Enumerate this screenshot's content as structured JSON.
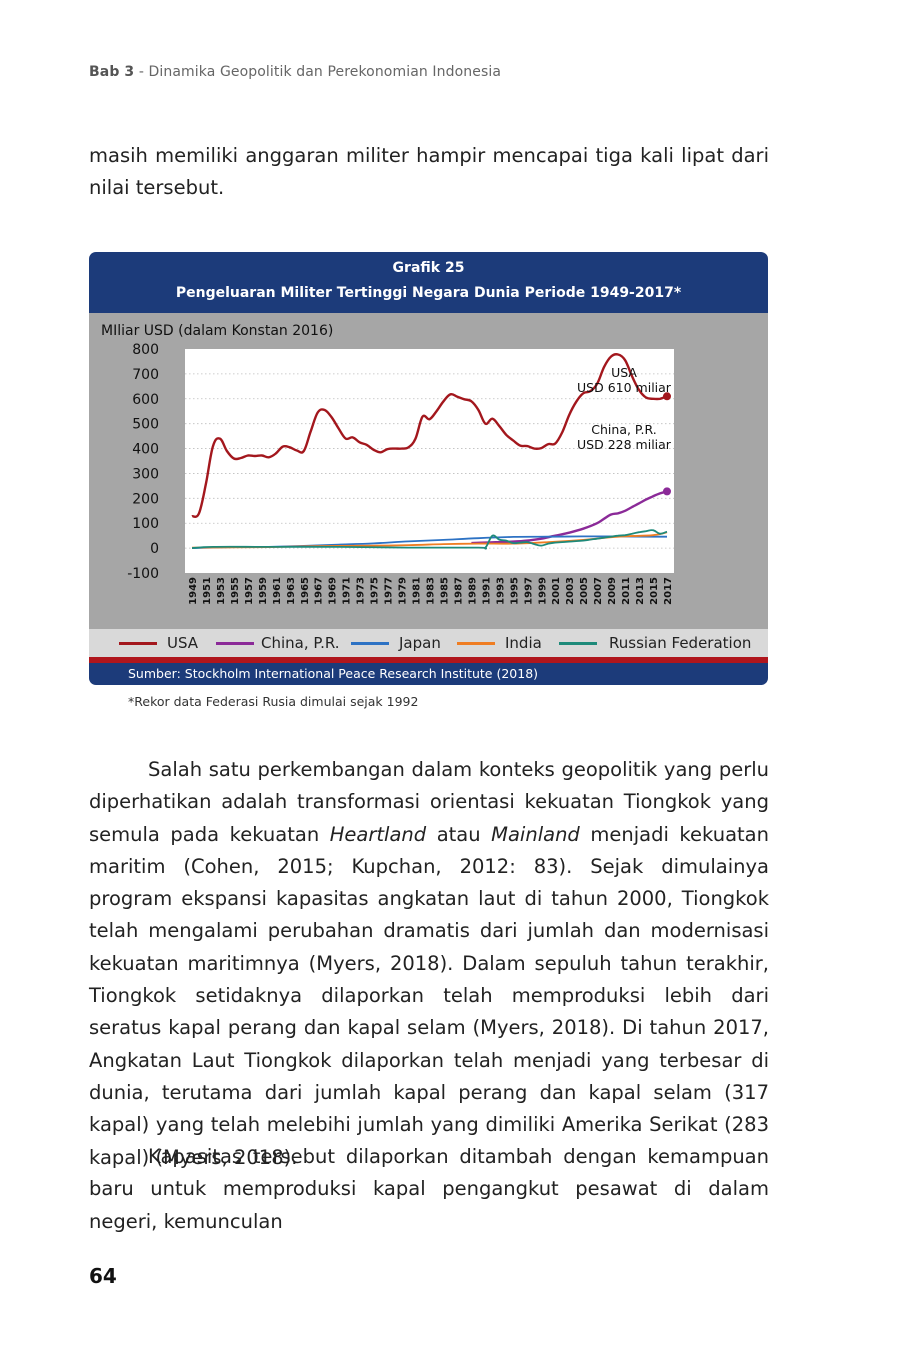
{
  "running_header": {
    "chapter": "Bab 3",
    "title": " - Dinamika Geopolitik dan Perekonomian Indonesia"
  },
  "paragraph_top": "masih memiliki anggaran militer hampir mencapai tiga kali lipat dari nilai tersebut.",
  "figure": {
    "label": "Grafik 25",
    "title": "Pengeluaran Militer Tertinggi Negara Dunia Periode 1949-2017*",
    "source": "Sumber: Stockholm International Peace Research Institute (2018)",
    "footnote": "*Rekor data Federasi Rusia dimulai sejak 1992"
  },
  "chart_data": {
    "type": "line",
    "ylabel": "MIliar USD (dalam Konstan 2016)",
    "ylim": [
      -100,
      800
    ],
    "yticks": [
      "800",
      "700",
      "600",
      "500",
      "400",
      "300",
      "200",
      "100",
      "0",
      "-100"
    ],
    "xlim": [
      1949,
      2017
    ],
    "xticks": [
      "1949",
      "1951",
      "1953",
      "1955",
      "1957",
      "1959",
      "1961",
      "1963",
      "1965",
      "1967",
      "1969",
      "1971",
      "1973",
      "1975",
      "1977",
      "1979",
      "1981",
      "1983",
      "1985",
      "1987",
      "1989",
      "1991",
      "1993",
      "1995",
      "1997",
      "1999",
      "2001",
      "2003",
      "2005",
      "2007",
      "2009",
      "2011",
      "2013",
      "2015",
      "2017"
    ],
    "grid": true,
    "legend_position": "bottom",
    "annotations": [
      {
        "series": "USA",
        "line1": "USA",
        "line2": "USD 610 miliar"
      },
      {
        "series": "China, P.R.",
        "line1": "China, P.R.",
        "line2": "USD 228 miliar"
      }
    ],
    "series": [
      {
        "name": "USA",
        "color": "#a3171d",
        "points": [
          [
            1949,
            128
          ],
          [
            1950,
            140
          ],
          [
            1951,
            260
          ],
          [
            1952,
            410
          ],
          [
            1953,
            440
          ],
          [
            1954,
            390
          ],
          [
            1955,
            360
          ],
          [
            1956,
            362
          ],
          [
            1957,
            372
          ],
          [
            1958,
            370
          ],
          [
            1959,
            372
          ],
          [
            1960,
            365
          ],
          [
            1961,
            380
          ],
          [
            1962,
            408
          ],
          [
            1963,
            405
          ],
          [
            1964,
            392
          ],
          [
            1965,
            390
          ],
          [
            1966,
            470
          ],
          [
            1967,
            545
          ],
          [
            1968,
            555
          ],
          [
            1969,
            525
          ],
          [
            1970,
            480
          ],
          [
            1971,
            440
          ],
          [
            1972,
            445
          ],
          [
            1973,
            425
          ],
          [
            1974,
            415
          ],
          [
            1975,
            395
          ],
          [
            1976,
            385
          ],
          [
            1977,
            398
          ],
          [
            1978,
            400
          ],
          [
            1979,
            400
          ],
          [
            1980,
            405
          ],
          [
            1981,
            440
          ],
          [
            1982,
            528
          ],
          [
            1983,
            518
          ],
          [
            1984,
            550
          ],
          [
            1985,
            590
          ],
          [
            1986,
            618
          ],
          [
            1987,
            608
          ],
          [
            1988,
            598
          ],
          [
            1989,
            590
          ],
          [
            1990,
            555
          ],
          [
            1991,
            500
          ],
          [
            1992,
            520
          ],
          [
            1993,
            490
          ],
          [
            1994,
            455
          ],
          [
            1995,
            432
          ],
          [
            1996,
            412
          ],
          [
            1997,
            410
          ],
          [
            1998,
            400
          ],
          [
            1999,
            402
          ],
          [
            2000,
            418
          ],
          [
            2001,
            420
          ],
          [
            2002,
            465
          ],
          [
            2003,
            535
          ],
          [
            2004,
            588
          ],
          [
            2005,
            622
          ],
          [
            2006,
            630
          ],
          [
            2007,
            660
          ],
          [
            2008,
            728
          ],
          [
            2009,
            770
          ],
          [
            2010,
            778
          ],
          [
            2011,
            755
          ],
          [
            2012,
            690
          ],
          [
            2013,
            635
          ],
          [
            2014,
            605
          ],
          [
            2015,
            600
          ],
          [
            2016,
            600
          ],
          [
            2017,
            610
          ]
        ]
      },
      {
        "name": "China, P.R.",
        "color": "#8b2a98",
        "points": [
          [
            1989,
            20
          ],
          [
            1991,
            22
          ],
          [
            1993,
            24
          ],
          [
            1995,
            26
          ],
          [
            1997,
            30
          ],
          [
            1999,
            38
          ],
          [
            2001,
            50
          ],
          [
            2003,
            62
          ],
          [
            2005,
            78
          ],
          [
            2007,
            100
          ],
          [
            2008,
            118
          ],
          [
            2009,
            135
          ],
          [
            2010,
            140
          ],
          [
            2011,
            150
          ],
          [
            2012,
            165
          ],
          [
            2013,
            180
          ],
          [
            2014,
            195
          ],
          [
            2015,
            208
          ],
          [
            2016,
            220
          ],
          [
            2017,
            228
          ]
        ]
      },
      {
        "name": "Japan",
        "color": "#2d72c4",
        "points": [
          [
            1949,
            0
          ],
          [
            1955,
            4
          ],
          [
            1960,
            5
          ],
          [
            1965,
            9
          ],
          [
            1970,
            14
          ],
          [
            1975,
            19
          ],
          [
            1980,
            27
          ],
          [
            1985,
            33
          ],
          [
            1990,
            40
          ],
          [
            1995,
            45
          ],
          [
            2000,
            46
          ],
          [
            2005,
            47
          ],
          [
            2010,
            47
          ],
          [
            2015,
            46
          ],
          [
            2017,
            46
          ]
        ]
      },
      {
        "name": "India",
        "color": "#ef7d22",
        "points": [
          [
            1949,
            2
          ],
          [
            1955,
            3
          ],
          [
            1960,
            4
          ],
          [
            1965,
            7
          ],
          [
            1970,
            9
          ],
          [
            1975,
            10
          ],
          [
            1980,
            12
          ],
          [
            1985,
            16
          ],
          [
            1990,
            18
          ],
          [
            1995,
            18
          ],
          [
            2000,
            24
          ],
          [
            2005,
            33
          ],
          [
            2010,
            46
          ],
          [
            2015,
            52
          ],
          [
            2017,
            64
          ]
        ]
      },
      {
        "name": "Russian Federation",
        "color": "#1e8a7a",
        "points": [
          [
            1949,
            0
          ],
          [
            1952,
            5
          ],
          [
            1960,
            5
          ],
          [
            1970,
            5
          ],
          [
            1980,
            2
          ],
          [
            1990,
            2
          ],
          [
            1991,
            2
          ],
          [
            1992,
            50
          ],
          [
            1993,
            34
          ],
          [
            1994,
            30
          ],
          [
            1995,
            20
          ],
          [
            1996,
            22
          ],
          [
            1997,
            24
          ],
          [
            1998,
            16
          ],
          [
            1999,
            10
          ],
          [
            2000,
            18
          ],
          [
            2001,
            22
          ],
          [
            2002,
            24
          ],
          [
            2003,
            26
          ],
          [
            2004,
            28
          ],
          [
            2005,
            30
          ],
          [
            2006,
            34
          ],
          [
            2007,
            38
          ],
          [
            2008,
            42
          ],
          [
            2009,
            46
          ],
          [
            2010,
            50
          ],
          [
            2011,
            52
          ],
          [
            2012,
            58
          ],
          [
            2013,
            64
          ],
          [
            2014,
            68
          ],
          [
            2015,
            72
          ],
          [
            2016,
            58
          ],
          [
            2017,
            66
          ]
        ]
      }
    ]
  },
  "legend": [
    {
      "label": "USA",
      "color": "#a3171d"
    },
    {
      "label": "China, P.R.",
      "color": "#8b2a98"
    },
    {
      "label": "Japan",
      "color": "#2d72c4"
    },
    {
      "label": "India",
      "color": "#ef7d22"
    },
    {
      "label": "Russian Federation",
      "color": "#1e8a7a"
    }
  ],
  "paragraph_1": {
    "part1": "Salah satu perkembangan dalam konteks geopolitik yang perlu diperhatikan adalah transformasi orientasi kekuatan Tiongkok yang semula pada kekuatan ",
    "italic1": "Heartland",
    "part2": " atau ",
    "italic2": "Mainland",
    "part3": " menjadi kekuatan maritim (Cohen, 2015; Kupchan, 2012: 83). Sejak dimulainya program ekspansi kapasitas angkatan laut di tahun 2000, Tiongkok telah mengalami perubahan dramatis dari jumlah dan modernisasi kekuatan maritimnya (Myers, 2018). Dalam sepuluh tahun terakhir, Tiongkok setidaknya dilaporkan telah memproduksi lebih dari seratus kapal perang dan kapal selam (Myers, 2018). Di tahun 2017, Angkatan Laut Tiongkok dilaporkan telah menjadi yang terbesar di dunia, terutama dari jumlah kapal perang dan kapal selam (317 kapal) yang telah melebihi jumlah yang dimiliki Amerika Serikat (283 kapal) (Myers, 2018)."
  },
  "paragraph_2": "Kapasitas tersebut dilaporkan ditambah dengan kemampuan baru untuk memproduksi kapal pengangkut pesawat di dalam negeri, kemunculan",
  "page_number": "64"
}
